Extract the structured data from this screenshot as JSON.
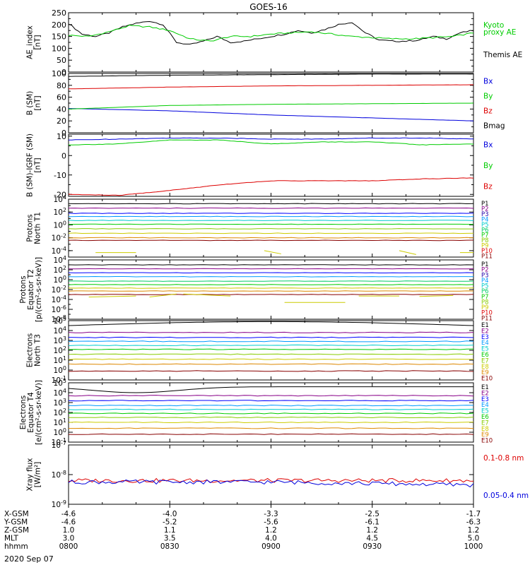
{
  "title": "GOES-16",
  "date_label": "2020 Sep 07",
  "ephemeris": {
    "labels": [
      "X-GSM",
      "Y-GSM",
      "Z-GSM",
      "MLT",
      "hhmm"
    ],
    "columns": [
      [
        "-4.6",
        "-4.6",
        "1.0",
        "3.0",
        "0800"
      ],
      [
        "-4.0",
        "-5.2",
        "1.1",
        "3.5",
        "0830"
      ],
      [
        "-3.3",
        "-5.6",
        "1.2",
        "4.0",
        "0900"
      ],
      [
        "-2.5",
        "-6.1",
        "1.2",
        "4.5",
        "0930"
      ],
      [
        "-1.7",
        "-6.3",
        "1.2",
        "5.0",
        "1000"
      ]
    ]
  },
  "colors": {
    "black": "#000000",
    "red": "#dd0000",
    "green": "#00cc00",
    "blue": "#0000dd",
    "p_scale": [
      "#000000",
      "#880088",
      "#2200aa",
      "#0000ff",
      "#0099ff",
      "#00cccc",
      "#00cc66",
      "#00cc00",
      "#88cc00",
      "#cccc00",
      "#dd8800",
      "#dd0000",
      "#880000"
    ]
  },
  "chart_data": [
    {
      "type": "line",
      "ylabel": [
        "AE_index",
        "[nT]"
      ],
      "ylim": [
        0,
        250
      ],
      "yticks": [
        "0",
        "50",
        "100",
        "150",
        "200",
        "250"
      ],
      "yticks_minor": [
        "25",
        "75",
        "125",
        "175",
        "225"
      ],
      "x_range": [
        "0800",
        "1000"
      ],
      "series": [
        {
          "name": "Themis AE",
          "color": "#000000",
          "x": [
            0,
            4,
            8,
            12,
            16,
            20,
            24,
            28,
            32,
            36,
            40,
            44,
            48,
            52,
            56,
            60,
            64,
            68,
            72,
            76,
            80,
            84,
            88,
            92,
            96,
            100,
            104,
            108,
            112,
            116,
            120
          ],
          "values": [
            205,
            160,
            150,
            165,
            190,
            205,
            215,
            200,
            125,
            115,
            130,
            150,
            125,
            130,
            140,
            150,
            160,
            175,
            165,
            180,
            200,
            210,
            165,
            135,
            130,
            130,
            135,
            150,
            140,
            165,
            175
          ]
        },
        {
          "name": "Kyoto proxy AE",
          "color": "#00cc00",
          "x": [
            0,
            6,
            12,
            18,
            24,
            30,
            36,
            42,
            48,
            54,
            60,
            66,
            72,
            78,
            84,
            90,
            96,
            102,
            108,
            114,
            120
          ],
          "values": [
            155,
            150,
            170,
            195,
            190,
            175,
            140,
            130,
            150,
            150,
            160,
            165,
            170,
            160,
            150,
            145,
            140,
            140,
            145,
            150,
            165
          ]
        }
      ],
      "legend": [
        {
          "text": "Kyoto",
          "color": "#00cc00"
        },
        {
          "text": "proxy AE",
          "color": "#00cc00"
        },
        {
          "text": "Themis AE",
          "color": "#000000"
        }
      ]
    },
    {
      "type": "line",
      "ylabel": [
        "B (SM)",
        "[nT]"
      ],
      "ylim": [
        0,
        100
      ],
      "yticks": [
        "0",
        "20",
        "40",
        "60",
        "80",
        "100"
      ],
      "yticks_minor": [
        "10",
        "30",
        "50",
        "70",
        "90"
      ],
      "x_range": [
        "0800",
        "1000"
      ],
      "series": [
        {
          "name": "Bx",
          "color": "#0000dd",
          "x": [
            0,
            30,
            60,
            90,
            120
          ],
          "values": [
            41,
            37,
            30,
            25,
            20
          ]
        },
        {
          "name": "By",
          "color": "#00cc00",
          "x": [
            0,
            30,
            60,
            90,
            120
          ],
          "values": [
            40,
            46,
            48,
            49,
            50
          ]
        },
        {
          "name": "Bz",
          "color": "#dd0000",
          "x": [
            0,
            30,
            60,
            90,
            120
          ],
          "values": [
            74,
            77,
            79,
            80,
            81
          ]
        },
        {
          "name": "Bmag",
          "color": "#000000",
          "x": [
            0,
            30,
            60,
            90,
            120
          ],
          "values": [
            95,
            97,
            98,
            99,
            99
          ]
        }
      ],
      "legend": [
        {
          "text": "Bx",
          "color": "#0000dd"
        },
        {
          "text": "By",
          "color": "#00cc00"
        },
        {
          "text": "Bz",
          "color": "#dd0000"
        },
        {
          "text": "Bmag",
          "color": "#000000"
        }
      ]
    },
    {
      "type": "line",
      "ylabel": [
        "B (SM)-IGRF (SM)",
        "[nT]"
      ],
      "ylim": [
        -21,
        11
      ],
      "yticks": [
        "-20",
        "-10",
        "0",
        "10"
      ],
      "yticks_minor": [
        "-15",
        "-5",
        "5"
      ],
      "x_range": [
        "0800",
        "1000"
      ],
      "series": [
        {
          "name": "Bx",
          "color": "#0000dd",
          "x": [
            0,
            15,
            30,
            45,
            60,
            75,
            90,
            105,
            120
          ],
          "values": [
            8,
            8.5,
            9,
            9,
            8.5,
            8.5,
            9,
            9,
            8.5
          ]
        },
        {
          "name": "By",
          "color": "#00cc00",
          "x": [
            0,
            15,
            30,
            45,
            60,
            75,
            90,
            105,
            120
          ],
          "values": [
            5.5,
            6,
            8,
            8,
            6,
            7,
            7,
            5.5,
            6
          ]
        },
        {
          "name": "Bz",
          "color": "#dd0000",
          "x": [
            0,
            15,
            30,
            45,
            60,
            75,
            90,
            105,
            120
          ],
          "values": [
            -20,
            -20.5,
            -18,
            -15,
            -13,
            -13,
            -13,
            -12,
            -11.5
          ]
        }
      ],
      "legend": [
        {
          "text": "Bx",
          "color": "#0000dd"
        },
        {
          "text": "By",
          "color": "#00cc00"
        },
        {
          "text": "Bz",
          "color": "#dd0000"
        }
      ]
    },
    {
      "type": "line",
      "log": true,
      "ylabel": [
        "Protons",
        "North T1"
      ],
      "ylim_exp": [
        -5,
        4
      ],
      "yticks": [
        {
          "b": "10",
          "e": "4"
        },
        {
          "b": "10",
          "e": "2"
        },
        {
          "b": "10",
          "e": "0"
        },
        {
          "b": "10",
          "e": "-2"
        },
        {
          "b": "10",
          "e": "-4"
        }
      ],
      "x_range": [
        "0800",
        "1000"
      ],
      "series_log10": [
        3.3,
        2.6,
        1.8,
        1.3,
        0.7,
        0.1,
        -0.6,
        -1.3,
        -2.0,
        -2.4
      ],
      "fragments": [
        [
          8,
          -4.3,
          20,
          -4.3
        ],
        [
          58,
          -4.0,
          63,
          -4.5
        ],
        [
          98,
          -4.0,
          103,
          -4.6
        ],
        [
          116,
          -4.3,
          120,
          -4.3
        ]
      ],
      "legend": [
        "P1",
        "P2",
        "P3",
        "P4",
        "P5",
        "P6",
        "P7",
        "P8",
        "P9",
        "P10",
        "P11"
      ]
    },
    {
      "type": "line",
      "log": true,
      "ylabel": [
        "Protons",
        "Equator T2",
        "[p/(cm²-s-sr-keV)]"
      ],
      "ylim_exp": [
        -8,
        4
      ],
      "yticks": [
        {
          "b": "10",
          "e": "4"
        },
        {
          "b": "10",
          "e": "2"
        },
        {
          "b": "10",
          "e": "0"
        },
        {
          "b": "10",
          "e": "-2"
        },
        {
          "b": "10",
          "e": "-4"
        },
        {
          "b": "10",
          "e": "-6"
        },
        {
          "b": "10",
          "e": "-8"
        }
      ],
      "x_range": [
        "0800",
        "1000"
      ],
      "series_log10": [
        3.0,
        2.2,
        1.4,
        0.6,
        -0.3,
        -1.0,
        -1.7,
        -2.3,
        -3.0
      ],
      "fragments": [
        [
          6,
          -3.5,
          20,
          -3.3
        ],
        [
          24,
          -3.5,
          32,
          -2.9
        ],
        [
          34,
          -2.9,
          48,
          -3.3
        ],
        [
          64,
          -4.6,
          82,
          -4.6
        ],
        [
          86,
          -3.3,
          98,
          -3.3
        ],
        [
          104,
          -3.4,
          114,
          -3.2
        ]
      ],
      "legend": [
        "P1",
        "P2",
        "P3",
        "P4",
        "P5",
        "P6",
        "P7",
        "P8",
        "P9",
        "P10",
        "P11"
      ]
    },
    {
      "type": "line",
      "log": true,
      "ylabel": [
        "Electrons",
        "North T3"
      ],
      "ylim_exp": [
        -1,
        5
      ],
      "yticks": [
        {
          "b": "10",
          "e": "5"
        },
        {
          "b": "10",
          "e": "4"
        },
        {
          "b": "10",
          "e": "3"
        },
        {
          "b": "10",
          "e": "2"
        },
        {
          "b": "10",
          "e": "1"
        },
        {
          "b": "10",
          "e": "0"
        },
        {
          "b": "10",
          "e": "-1"
        }
      ],
      "x_range": [
        "0800",
        "1000"
      ],
      "series_log10": [
        4.5,
        3.8,
        3.3,
        2.9,
        2.5,
        2.1,
        1.6,
        1.1,
        0.6,
        -0.1
      ],
      "legend": [
        "E1",
        "E2",
        "E3",
        "E4",
        "E5",
        "E6",
        "E7",
        "E8",
        "E9",
        "E10"
      ]
    },
    {
      "type": "line",
      "log": true,
      "ylabel": [
        "Electrons",
        "Equator T4",
        "[e/(cm²-s-sr-keV)]"
      ],
      "ylim_exp": [
        -1,
        5
      ],
      "yticks": [
        {
          "b": "10",
          "e": "5"
        },
        {
          "b": "10",
          "e": "4"
        },
        {
          "b": "10",
          "e": "3"
        },
        {
          "b": "10",
          "e": "2"
        },
        {
          "b": "10",
          "e": "1"
        },
        {
          "b": "10",
          "e": "0"
        },
        {
          "b": "10",
          "e": "-1"
        }
      ],
      "x_range": [
        "0800",
        "1000"
      ],
      "series_log10": [
        4.6,
        3.7,
        3.2,
        2.7,
        2.3,
        1.9,
        1.5,
        1.0,
        0.4,
        -0.2
      ],
      "legend": [
        "E1",
        "E2",
        "E3",
        "E4",
        "E5",
        "E6",
        "E7",
        "E8",
        "E9",
        "E10"
      ]
    },
    {
      "type": "line",
      "log": true,
      "ylabel": [
        "Xray flux",
        "[W/m²]"
      ],
      "ylim_exp": [
        -9,
        -7
      ],
      "yticks": [
        {
          "b": "10",
          "e": "-7"
        },
        {
          "b": "10",
          "e": "-8"
        },
        {
          "b": "10",
          "e": "-9"
        }
      ],
      "x_range": [
        "0800",
        "1000"
      ],
      "series": [
        {
          "name": "0.1-0.8 nm",
          "color": "#dd0000",
          "base_log10": -8.2
        },
        {
          "name": "0.05-0.4 nm",
          "color": "#0000dd",
          "base_log10": -8.25
        }
      ],
      "legend": [
        {
          "text": "0.1-0.8 nm",
          "color": "#dd0000"
        },
        {
          "text": "0.05-0.4 nm",
          "color": "#0000dd"
        }
      ]
    }
  ]
}
